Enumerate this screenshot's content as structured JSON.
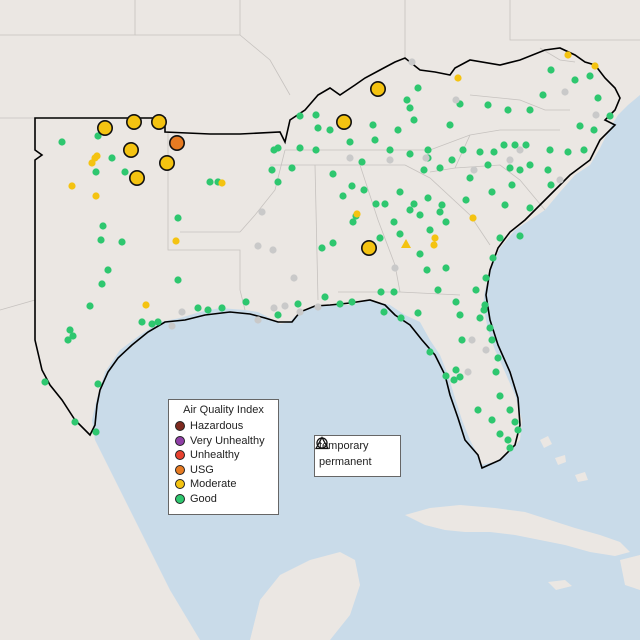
{
  "legend": {
    "title": "Air Quality Index",
    "levels": [
      {
        "label": "Hazardous",
        "color": "#7e2a1f"
      },
      {
        "label": "Very Unhealthy",
        "color": "#8f3fa6"
      },
      {
        "label": "Unhealthy",
        "color": "#e8412f"
      },
      {
        "label": "USG",
        "color": "#e77b22"
      },
      {
        "label": "Moderate",
        "color": "#f4c311"
      },
      {
        "label": "Good",
        "color": "#2ec76f"
      }
    ]
  },
  "monitor_types": [
    {
      "label": "temporary",
      "shape": "circle-icon"
    },
    {
      "label": "permanent",
      "shape": "triangle-icon"
    }
  ],
  "colors": {
    "water": "#c9dbe9",
    "land": "#ebe7e3",
    "no_data": "#c9c9c9",
    "border": "#000000"
  }
}
